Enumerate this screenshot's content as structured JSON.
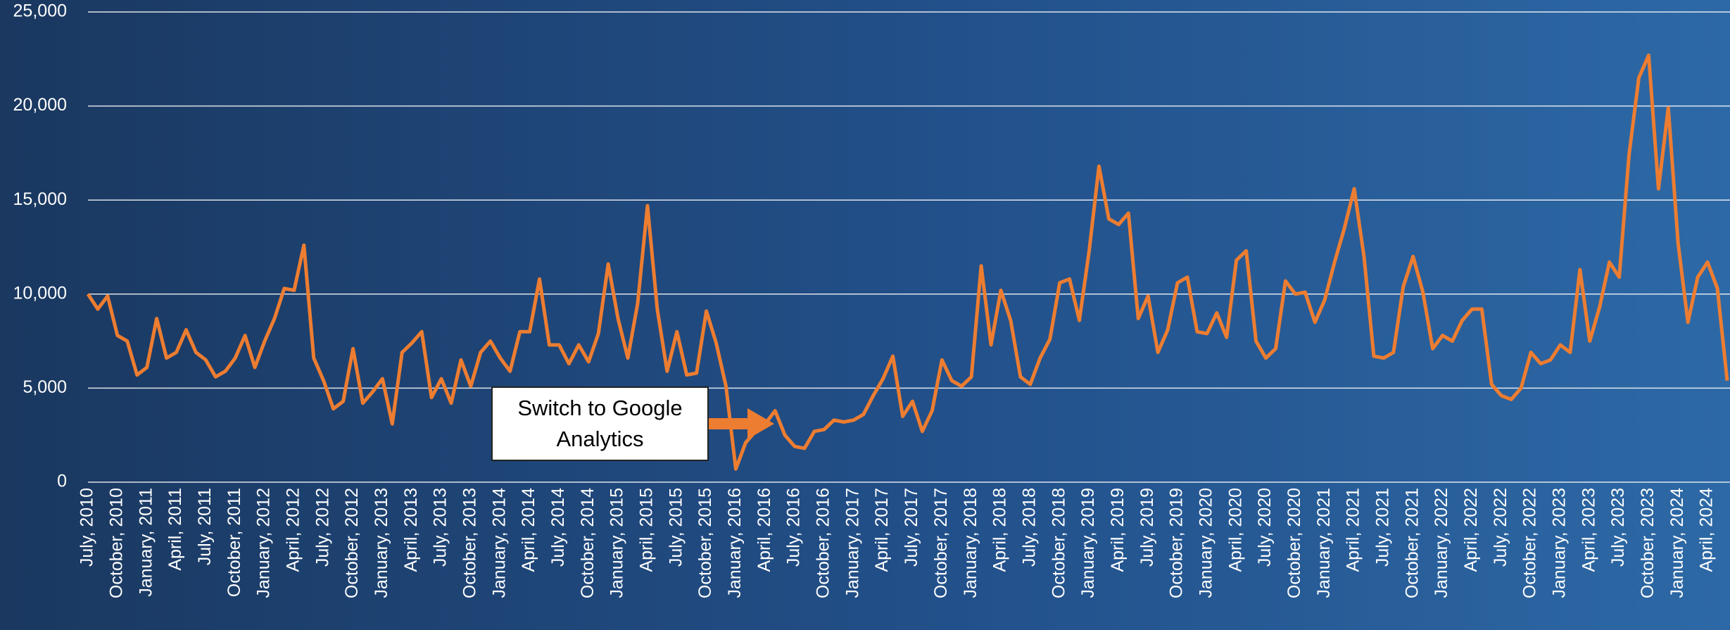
{
  "chart_data": {
    "type": "line",
    "categories": [
      "July, 2010",
      null,
      null,
      "October, 2010",
      null,
      null,
      "January, 2011",
      null,
      null,
      "April, 2011",
      null,
      null,
      "July, 2011",
      null,
      null,
      "October, 2011",
      null,
      null,
      "January, 2012",
      null,
      null,
      "April, 2012",
      null,
      null,
      "July, 2012",
      null,
      null,
      "October, 2012",
      null,
      null,
      "January, 2013",
      null,
      null,
      "April, 2013",
      null,
      null,
      "July, 2013",
      null,
      null,
      "October, 2013",
      null,
      null,
      "January, 2014",
      null,
      null,
      "April, 2014",
      null,
      null,
      "July, 2014",
      null,
      null,
      "October, 2014",
      null,
      null,
      "January, 2015",
      null,
      null,
      "April, 2015",
      null,
      null,
      "July, 2015",
      null,
      null,
      "October, 2015",
      null,
      null,
      "January, 2016",
      null,
      null,
      "April, 2016",
      null,
      null,
      "July, 2016",
      null,
      null,
      "October, 2016",
      null,
      null,
      "January, 2017",
      null,
      null,
      "April, 2017",
      null,
      null,
      "July, 2017",
      null,
      null,
      "October, 2017",
      null,
      null,
      "January, 2018",
      null,
      null,
      "April, 2018",
      null,
      null,
      "July, 2018",
      null,
      null,
      "October, 2018",
      null,
      null,
      "January, 2019",
      null,
      null,
      "April, 2019",
      null,
      null,
      "July, 2019",
      null,
      null,
      "October, 2019",
      null,
      null,
      "January, 2020",
      null,
      null,
      "April, 2020",
      null,
      null,
      "July, 2020",
      null,
      null,
      "October, 2020",
      null,
      null,
      "January, 2021",
      null,
      null,
      "April, 2021",
      null,
      null,
      "July, 2021",
      null,
      null,
      "October, 2021",
      null,
      null,
      "January, 2022",
      null,
      null,
      "April, 2022",
      null,
      null,
      "July, 2022",
      null,
      null,
      "October, 2022",
      null,
      null,
      "January, 2023",
      null,
      null,
      "April, 2023",
      null,
      null,
      "July, 2023",
      null,
      null,
      "October, 2023",
      null,
      null,
      "January, 2024",
      null,
      null,
      "April, 2024",
      null,
      null
    ],
    "series": [
      {
        "color": "#ed7d31",
        "values": [
          10000,
          9200,
          9900,
          7800,
          7500,
          5700,
          6100,
          8700,
          6600,
          6900,
          8100,
          6900,
          6500,
          5600,
          5900,
          6600,
          7800,
          6100,
          7500,
          8700,
          10300,
          10200,
          12600,
          6600,
          5400,
          3900,
          4300,
          7100,
          4200,
          4800,
          5500,
          3100,
          6900,
          7400,
          8000,
          4500,
          5500,
          4200,
          6500,
          5100,
          6900,
          7500,
          6600,
          5900,
          8000,
          8000,
          10800,
          7300,
          7300,
          6300,
          7300,
          6400,
          7900,
          11600,
          8700,
          6600,
          9500,
          14700,
          9200,
          5900,
          8000,
          5700,
          5800,
          9100,
          7400,
          5100,
          700,
          2100,
          2700,
          3100,
          3800,
          2500,
          1900,
          1800,
          2700,
          2800,
          3300,
          3200,
          3300,
          3600,
          4600,
          5500,
          6700,
          3500,
          4300,
          2700,
          3800,
          6500,
          5400,
          5100,
          5600,
          11500,
          7300,
          10200,
          8600,
          5600,
          5200,
          6600,
          7600,
          10600,
          10800,
          8600,
          12300,
          16800,
          14000,
          13700,
          14300,
          8700,
          9900,
          6900,
          8100,
          10600,
          10900,
          8000,
          7900,
          9000,
          7700,
          11800,
          12300,
          7500,
          6600,
          7100,
          10700,
          10000,
          10100,
          8500,
          9700,
          11700,
          13500,
          15600,
          12000,
          6700,
          6600,
          6900,
          10400,
          12000,
          10100,
          7100,
          7800,
          7500,
          8600,
          9200,
          9200,
          5200,
          4600,
          4400,
          5000,
          6900,
          6300,
          6500,
          7300,
          6900,
          11300,
          7500,
          9300,
          11700,
          10900,
          17400,
          21500,
          22700,
          15600,
          19900,
          12700,
          8500,
          10900,
          11700,
          10300,
          5400
        ]
      }
    ],
    "ylim": [
      0,
      25000
    ],
    "yticks": [
      0,
      {
        "value": 5000,
        "label": "5,000"
      },
      {
        "value": 10000,
        "label": "10,000"
      },
      {
        "value": 15000,
        "label": "15,000"
      },
      {
        "value": 20000,
        "label": "20,000"
      },
      {
        "value": 25000,
        "label": "25,000"
      }
    ],
    "grid": true,
    "annotation": "Switch to Google Analytics"
  }
}
